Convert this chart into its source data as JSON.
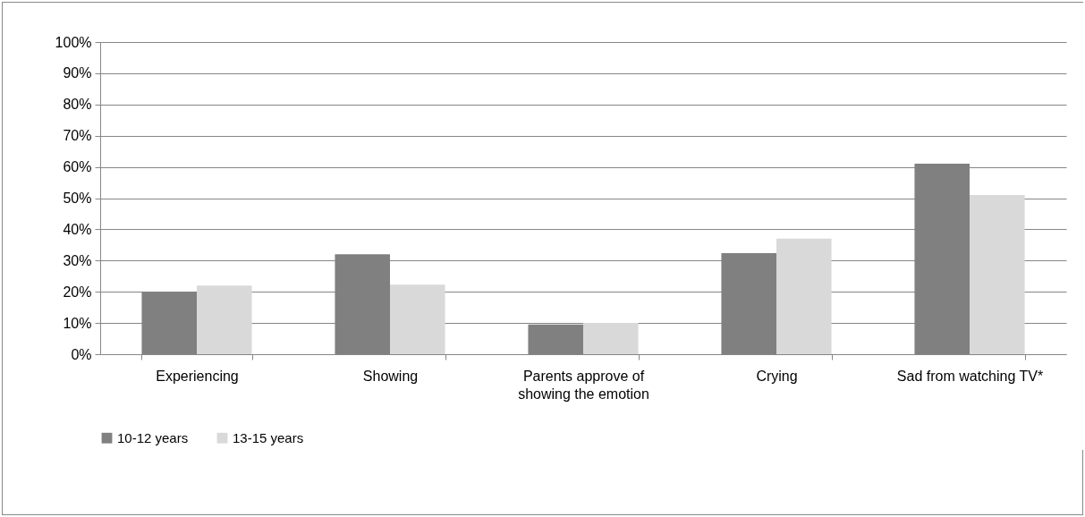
{
  "chart_data": {
    "type": "bar",
    "categories": [
      "Experiencing",
      "Showing",
      "Parents approve of showing the emotion",
      "Crying",
      "Sad from watching TV*"
    ],
    "series": [
      {
        "name": "10-12 years",
        "color": "#808080",
        "values": [
          20,
          32,
          9.5,
          32.4,
          61
        ]
      },
      {
        "name": "13-15 years",
        "color": "#d9d9d9",
        "values": [
          22,
          22.3,
          10,
          37,
          51
        ]
      }
    ],
    "ylim": [
      0,
      100
    ],
    "yticks": [
      {
        "value": 0,
        "label": "0%"
      },
      {
        "value": 10,
        "label": "10%"
      },
      {
        "value": 20,
        "label": "20%"
      },
      {
        "value": 30,
        "label": "30%"
      },
      {
        "value": 40,
        "label": "40%"
      },
      {
        "value": 50,
        "label": "50%"
      },
      {
        "value": 60,
        "label": "60%"
      },
      {
        "value": 70,
        "label": "70%"
      },
      {
        "value": 80,
        "label": "80%"
      },
      {
        "value": 90,
        "label": "90%"
      },
      {
        "value": 100,
        "label": "100%"
      }
    ],
    "grid": "y",
    "legend": "bottom"
  }
}
